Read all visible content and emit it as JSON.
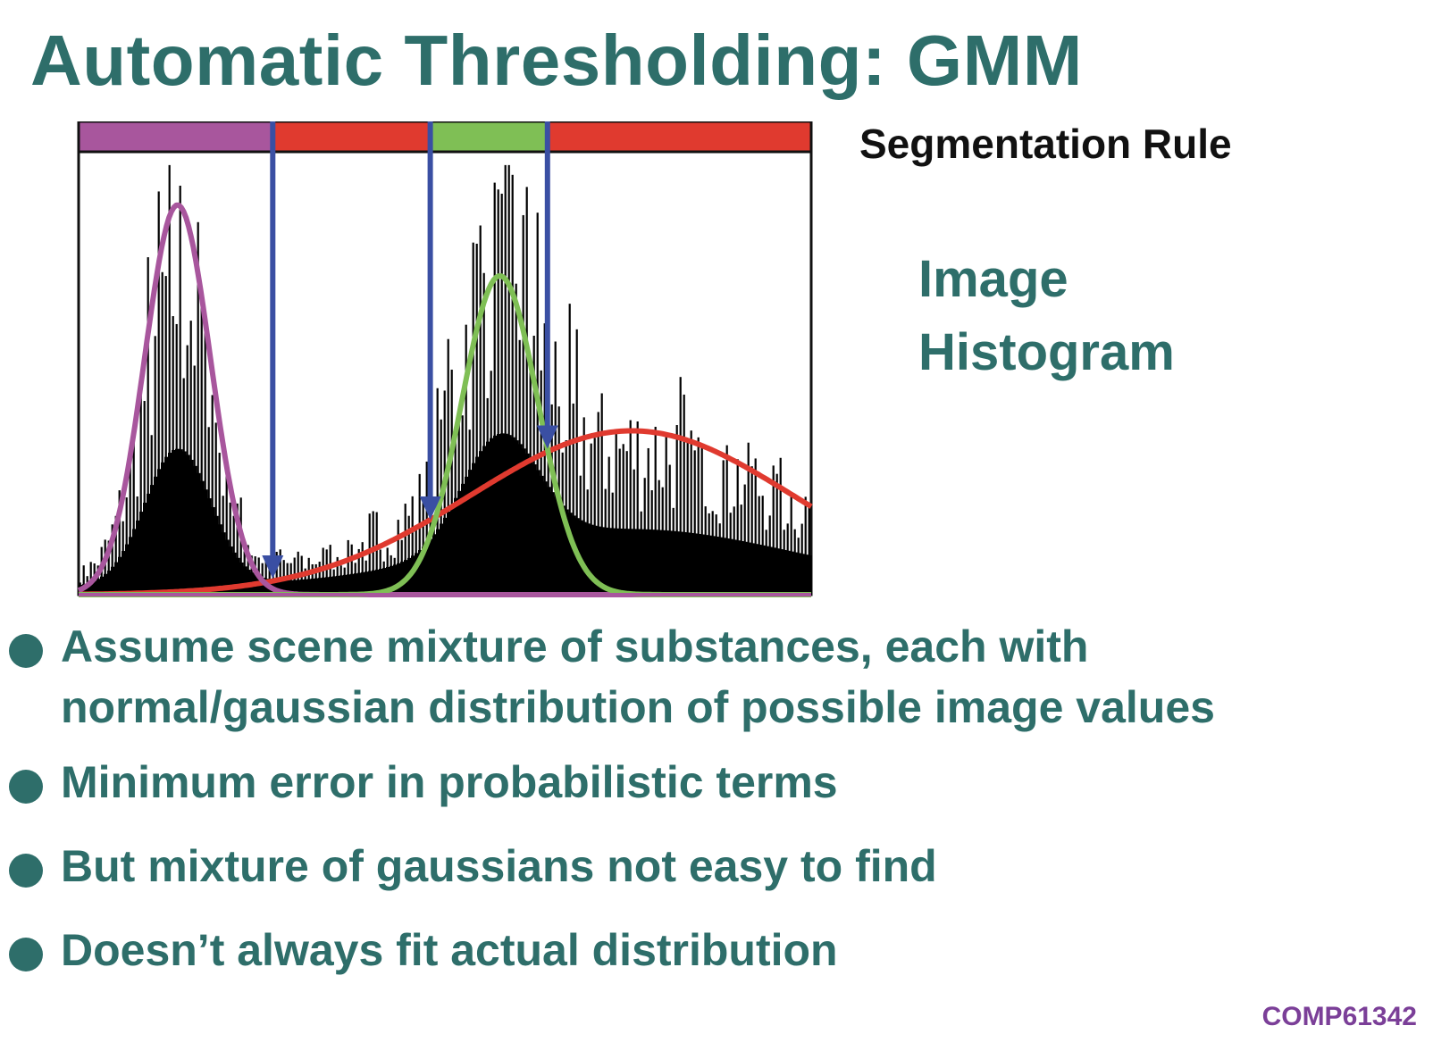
{
  "slide": {
    "title": "Automatic Thresholding: GMM",
    "segmentation_label": "Segmentation Rule",
    "histogram_label": [
      "Image",
      "Histogram"
    ],
    "footer": "COMP61342"
  },
  "bullets": [
    {
      "lines": [
        "Assume scene mixture of substances, each with",
        "normal/gaussian distribution of possible image values"
      ]
    },
    {
      "lines": [
        "Minimum error in probabilistic terms"
      ]
    },
    {
      "lines": [
        "But mixture of gaussians not easy to find"
      ]
    },
    {
      "lines": [
        "Doesn’t always fit actual distribution"
      ]
    }
  ],
  "colors": {
    "title": "#2e6e6a",
    "class1": "#a8569d",
    "class2": "#e03a2f",
    "class3": "#7fbf55",
    "threshold_arrow": "#3a4fa3",
    "footer": "#7b3f98"
  },
  "figure": {
    "segmentation_bands": [
      {
        "from": 0.0,
        "to": 0.265,
        "color": "#a8569d"
      },
      {
        "from": 0.265,
        "to": 0.48,
        "color": "#e03a2f"
      },
      {
        "from": 0.48,
        "to": 0.64,
        "color": "#7fbf55"
      },
      {
        "from": 0.64,
        "to": 1.0,
        "color": "#e03a2f"
      }
    ],
    "thresholds": [
      0.265,
      0.48,
      0.64
    ],
    "gaussians": [
      {
        "name": "class1",
        "mean": 0.135,
        "sd": 0.045,
        "peak": 0.88,
        "color": "#a8569d"
      },
      {
        "name": "class3",
        "mean": 0.575,
        "sd": 0.052,
        "peak": 0.72,
        "color": "#7fbf55"
      },
      {
        "name": "class2",
        "mean": 0.755,
        "sd": 0.22,
        "peak": 0.37,
        "color": "#e03a2f"
      }
    ]
  }
}
